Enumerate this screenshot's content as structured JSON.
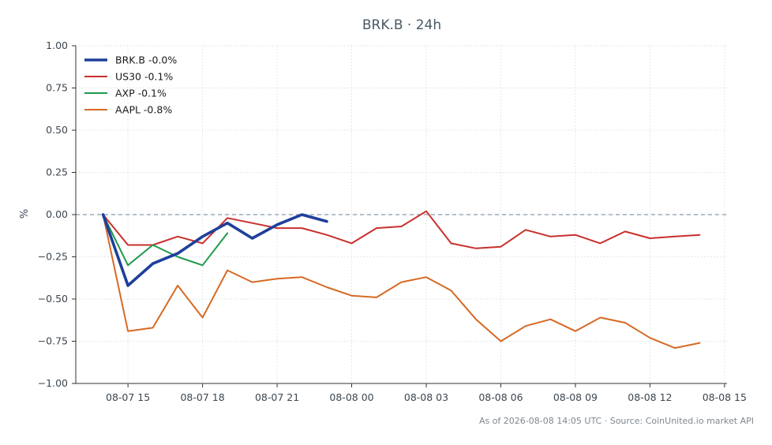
{
  "chart_data": {
    "type": "line",
    "title": "BRK.B · 24h",
    "ylabel": "%",
    "xlabel": "",
    "ylim": [
      -1.0,
      1.0
    ],
    "y_ticks": [
      "1.00",
      "0.75",
      "0.50",
      "0.25",
      "0.00",
      "−0.25",
      "−0.50",
      "−0.75",
      "−1.00"
    ],
    "x_ticks": [
      "08-07 15",
      "08-07 18",
      "08-07 21",
      "08-08 00",
      "08-08 03",
      "08-08 06",
      "08-08 09",
      "08-08 12",
      "08-08 15"
    ],
    "x_tick_hours": [
      15,
      18,
      21,
      24,
      27,
      30,
      33,
      36,
      39
    ],
    "x_range_hours": [
      12.9,
      39.1
    ],
    "zero_line": true,
    "grid": true,
    "legend_position": "top-left",
    "series": [
      {
        "name": "BRK.B -0.0%",
        "color": "#1f3f9a",
        "x": [
          14,
          15,
          16,
          17,
          18,
          19,
          20,
          21,
          22,
          23
        ],
        "values": [
          0.0,
          -0.42,
          -0.29,
          -0.23,
          -0.13,
          -0.05,
          -0.14,
          -0.06,
          0.0,
          -0.04
        ]
      },
      {
        "name": "US30 -0.1%",
        "color": "#c8302e",
        "x": [
          14,
          15,
          16,
          17,
          18,
          19,
          20,
          21,
          22,
          23,
          24,
          25,
          26,
          27,
          28,
          29,
          30,
          31,
          32,
          33,
          34,
          35,
          36,
          37,
          38
        ],
        "values": [
          0.0,
          -0.18,
          -0.18,
          -0.13,
          -0.17,
          -0.02,
          -0.05,
          -0.08,
          -0.08,
          -0.12,
          -0.17,
          -0.08,
          -0.07,
          0.02,
          -0.17,
          -0.2,
          -0.19,
          -0.09,
          -0.13,
          -0.12,
          -0.17,
          -0.1,
          -0.14,
          -0.13,
          -0.12
        ]
      },
      {
        "name": "AXP -0.1%",
        "color": "#1e9a4b",
        "x": [
          14,
          15,
          16,
          17,
          18,
          19
        ],
        "values": [
          0.0,
          -0.3,
          -0.18,
          -0.25,
          -0.3,
          -0.11
        ]
      },
      {
        "name": "AAPL -0.8%",
        "color": "#d66a24",
        "x": [
          14,
          15,
          16,
          17,
          18,
          19,
          20,
          21,
          22,
          23,
          24,
          25,
          26,
          27,
          28,
          29,
          30,
          31,
          32,
          33,
          34,
          35,
          36,
          37,
          38
        ],
        "values": [
          0.0,
          -0.69,
          -0.67,
          -0.42,
          -0.61,
          -0.33,
          -0.4,
          -0.38,
          -0.37,
          -0.43,
          -0.48,
          -0.49,
          -0.4,
          -0.37,
          -0.45,
          -0.62,
          -0.75,
          -0.66,
          -0.62,
          -0.69,
          -0.61,
          -0.64,
          -0.73,
          -0.79,
          -0.76
        ]
      }
    ],
    "footnote": "As of 2026-08-08 14:05 UTC · Source: CoinUnited.io market API"
  }
}
